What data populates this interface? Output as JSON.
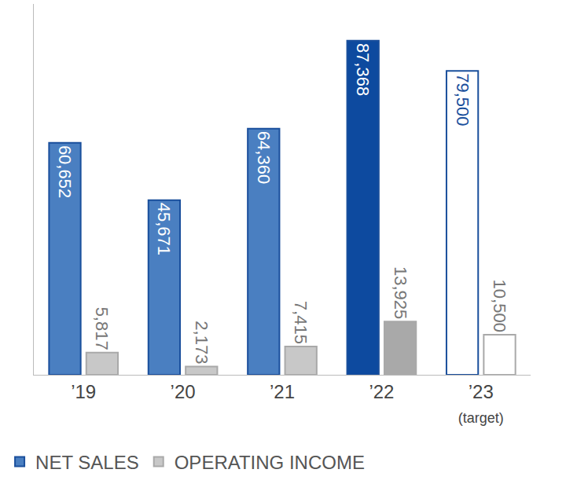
{
  "chart_data": {
    "type": "bar",
    "categories": [
      "’19",
      "’20",
      "’21",
      "’22",
      "’23 (target)"
    ],
    "series": [
      {
        "name": "NET SALES",
        "color": "#1a4f9c",
        "colors": [
          "#4a7fc1",
          "#4a7fc1",
          "#4a7fc1",
          "#0d4a9f",
          "#ffffff"
        ],
        "values": [
          60652,
          45671,
          64360,
          87368,
          79500
        ],
        "value_labels": [
          "60,652",
          "45,671",
          "64,360",
          "87,368",
          "79,500"
        ]
      },
      {
        "name": "OPERATING INCOME",
        "color": "#a9a9a9",
        "colors": [
          "#c8c8c8",
          "#c8c8c8",
          "#c8c8c8",
          "#a9a9a9",
          "#ffffff"
        ],
        "values": [
          5817,
          2173,
          7415,
          13925,
          10500
        ],
        "value_labels": [
          "5,817",
          "2,173",
          "7,415",
          "13,925",
          "10,500"
        ]
      }
    ],
    "ylim": [
      0,
      97000
    ],
    "data_labels": true,
    "tick_labels": "x",
    "grid": false,
    "legend": "bottom"
  }
}
